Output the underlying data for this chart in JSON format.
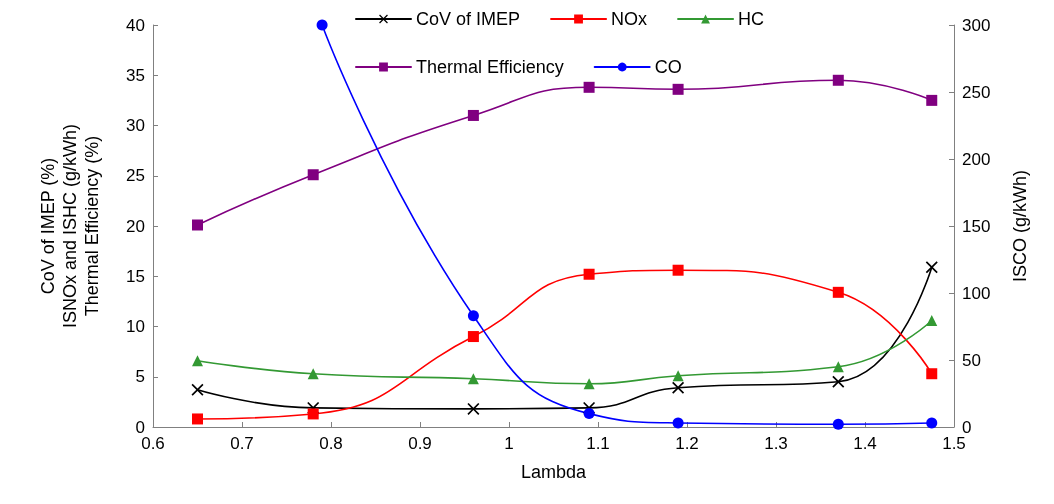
{
  "chart_data": {
    "type": "line",
    "xlabel": "Lambda",
    "ylabel": "CoV of IMEP (%)\nISNOx and ISHC (g/kWh)\nThermal Efficiency (%)",
    "y2label": "ISCO (g/kWh)",
    "x": [
      0.65,
      0.78,
      0.96,
      1.09,
      1.19,
      1.37,
      1.475
    ],
    "series": [
      {
        "name": "CoV of IMEP",
        "color": "#000000",
        "marker": "cross",
        "values": [
          3.7,
          1.9,
          1.8,
          1.9,
          3.9,
          4.5,
          15.9
        ]
      },
      {
        "name": "NOx",
        "color": "#ff0000",
        "marker": "square",
        "values": [
          0.8,
          1.3,
          9.0,
          15.2,
          15.6,
          13.4,
          5.3
        ]
      },
      {
        "name": "HC",
        "color": "#339933",
        "marker": "triangle",
        "values": [
          6.6,
          5.3,
          4.8,
          4.3,
          5.1,
          6.0,
          10.6
        ]
      },
      {
        "name": "Thermal Efficiency",
        "color": "#800080",
        "marker": "square",
        "values": [
          20.1,
          25.1,
          31.0,
          33.8,
          33.6,
          34.5,
          32.5
        ]
      },
      {
        "name": "CO",
        "color": "#0000ff",
        "marker": "circle",
        "axis": "y2",
        "x": [
          0.79,
          0.96,
          1.09,
          1.19,
          1.37,
          1.475
        ],
        "values": [
          300,
          83,
          10,
          3,
          2,
          3
        ]
      }
    ],
    "xlim": [
      0.6,
      1.5
    ],
    "xticks": [
      0.6,
      0.7,
      0.8,
      0.9,
      1,
      1.1,
      1.2,
      1.3,
      1.4,
      1.5
    ],
    "ylim": [
      0,
      40
    ],
    "yticks": [
      0,
      5,
      10,
      15,
      20,
      25,
      30,
      35,
      40
    ],
    "y2lim": [
      0,
      300
    ],
    "y2ticks": [
      0,
      50,
      100,
      150,
      200,
      250,
      300
    ],
    "grid": false,
    "legend": "top",
    "line_style": "solid"
  }
}
